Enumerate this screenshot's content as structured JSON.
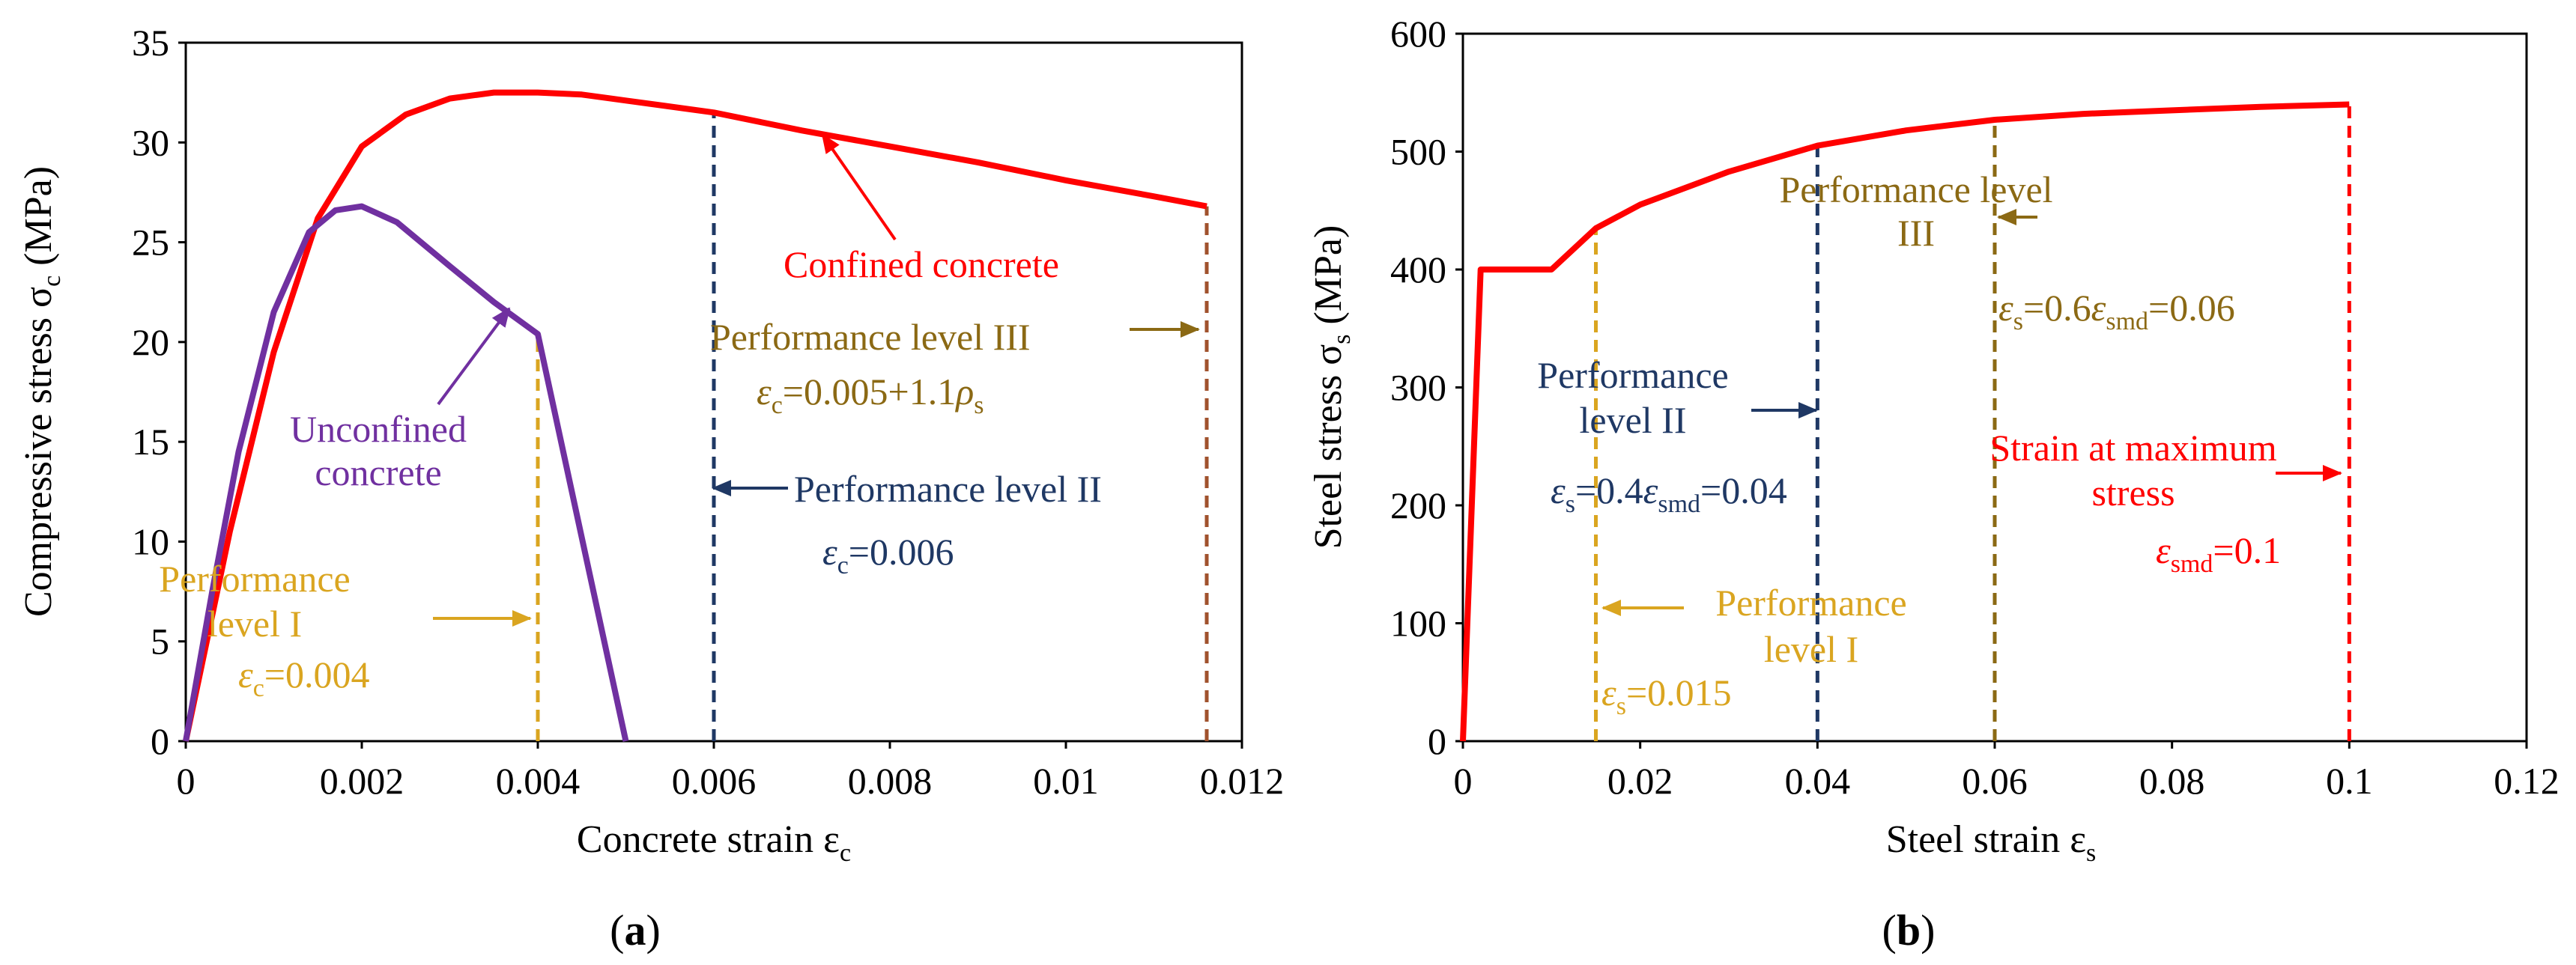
{
  "figure_labels": {
    "a": "a",
    "b": "b"
  },
  "colors": {
    "red": "#ff0000",
    "purple": "#7030a0",
    "yellow": "#daa520",
    "navy": "#1f3864",
    "brown": "#8b6914",
    "darkred": "#a0522d",
    "axis": "#000000"
  },
  "chart_data": [
    {
      "id": "a",
      "type": "line",
      "xlabel": "Concrete strain ε",
      "xlabel_sub": "c",
      "ylabel": "Compressive stress σ",
      "ylabel_sub": "c",
      "ylabel_unit": " (MPa)",
      "xlim": [
        0,
        0.012
      ],
      "ylim": [
        0,
        35
      ],
      "xticks": [
        0,
        0.002,
        0.004,
        0.006,
        0.008,
        0.01,
        0.012
      ],
      "xtick_labels": [
        "0",
        "0.002",
        "0.004",
        "0.006",
        "0.008",
        "0.01",
        "0.012"
      ],
      "yticks": [
        0,
        5,
        10,
        15,
        20,
        25,
        30,
        35
      ],
      "ytick_labels": [
        "0",
        "5",
        "10",
        "15",
        "20",
        "25",
        "30",
        "35"
      ],
      "grid": false,
      "series": [
        {
          "name": "Confined concrete",
          "color": "red",
          "x": [
            0,
            0.0005,
            0.001,
            0.0015,
            0.002,
            0.0025,
            0.003,
            0.0035,
            0.004,
            0.0045,
            0.005,
            0.006,
            0.007,
            0.008,
            0.009,
            0.01,
            0.011,
            0.0116
          ],
          "y": [
            0,
            10.5,
            19.5,
            26.2,
            29.8,
            31.4,
            32.2,
            32.5,
            32.5,
            32.4,
            32.1,
            31.5,
            30.6,
            29.8,
            29.0,
            28.1,
            27.3,
            26.8
          ]
        },
        {
          "name": "Unconfined concrete",
          "color": "purple",
          "x": [
            0,
            0.0003,
            0.0006,
            0.001,
            0.0014,
            0.0017,
            0.002,
            0.0024,
            0.003,
            0.0035,
            0.004,
            0.0045,
            0.005
          ],
          "y": [
            0,
            7.5,
            14.5,
            21.5,
            25.5,
            26.6,
            26.8,
            26.0,
            23.8,
            22.0,
            20.4,
            10.2,
            0
          ]
        }
      ],
      "vlines": [
        {
          "x": 0.004,
          "y_top": 20.4,
          "color": "yellow"
        },
        {
          "x": 0.006,
          "y_top": 31.5,
          "color": "navy"
        },
        {
          "x": 0.0116,
          "y_top": 26.8,
          "color": "darkred"
        }
      ],
      "annotations": [
        {
          "lines": [
            "Confined concrete"
          ],
          "color": "red"
        },
        {
          "lines": [
            "Unconfined",
            "concrete"
          ],
          "color": "purple"
        },
        {
          "lines": [
            "Performance",
            "level I"
          ],
          "eq": [
            "ε",
            "c",
            "=0.004"
          ],
          "color": "yellow"
        },
        {
          "lines": [
            "Performance level II"
          ],
          "eq": [
            "ε",
            "c",
            "=0.006"
          ],
          "color": "navy"
        },
        {
          "lines": [
            "Performance level III"
          ],
          "eq": [
            "ε",
            "c",
            "=0.005+1.1",
            "ρ",
            "s"
          ],
          "color": "brown"
        }
      ]
    },
    {
      "id": "b",
      "type": "line",
      "xlabel": "Steel strain ε",
      "xlabel_sub": "s",
      "ylabel": "Steel stress σ",
      "ylabel_sub": "s",
      "ylabel_unit": " (MPa)",
      "xlim": [
        0,
        0.12
      ],
      "ylim": [
        0,
        600
      ],
      "xticks": [
        0,
        0.02,
        0.04,
        0.06,
        0.08,
        0.1,
        0.12
      ],
      "xtick_labels": [
        "0",
        "0.02",
        "0.04",
        "0.06",
        "0.08",
        "0.1",
        "0.12"
      ],
      "yticks": [
        0,
        100,
        200,
        300,
        400,
        500,
        600
      ],
      "ytick_labels": [
        "0",
        "100",
        "200",
        "300",
        "400",
        "500",
        "600"
      ],
      "grid": false,
      "series": [
        {
          "name": "Steel",
          "color": "red",
          "x": [
            0,
            0.002,
            0.01,
            0.015,
            0.02,
            0.03,
            0.04,
            0.05,
            0.06,
            0.07,
            0.08,
            0.09,
            0.1
          ],
          "y": [
            0,
            400,
            400,
            435,
            455,
            483,
            505,
            518,
            527,
            532,
            535,
            538,
            540
          ]
        }
      ],
      "vlines": [
        {
          "x": 0.015,
          "y_top": 435,
          "color": "yellow"
        },
        {
          "x": 0.04,
          "y_top": 505,
          "color": "navy"
        },
        {
          "x": 0.06,
          "y_top": 527,
          "color": "brown"
        },
        {
          "x": 0.1,
          "y_top": 540,
          "color": "red"
        }
      ],
      "annotations": [
        {
          "lines": [
            "Performance",
            "level I"
          ],
          "eq": [
            "ε",
            "s",
            "=0.015"
          ],
          "color": "yellow"
        },
        {
          "lines": [
            "Performance",
            "level II"
          ],
          "eq": [
            "ε",
            "s",
            "=0.4",
            "ε",
            "smd",
            "=0.04"
          ],
          "color": "navy"
        },
        {
          "lines": [
            "Performance level",
            "III"
          ],
          "eq": [
            "ε",
            "s",
            "=0.6",
            "ε",
            "smd",
            "=0.06"
          ],
          "color": "brown"
        },
        {
          "lines": [
            "Strain at maximum",
            "stress"
          ],
          "eq": [
            "ε",
            "smd",
            "=0.1"
          ],
          "color": "red"
        }
      ]
    }
  ]
}
